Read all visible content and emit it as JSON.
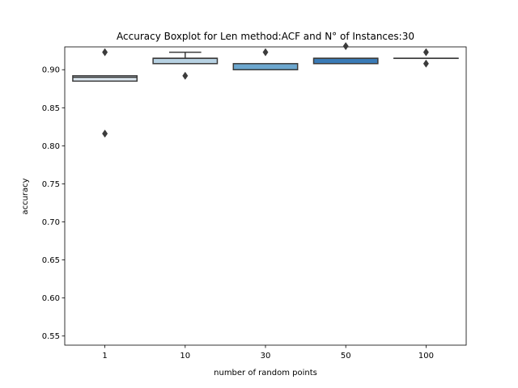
{
  "chart_data": {
    "type": "boxplot",
    "title": "Accuracy Boxplot for Len method:ACF and N° of Instances:30",
    "xlabel": "number of random points",
    "ylabel": "accuracy",
    "ylim": [
      0.538,
      0.93
    ],
    "yticks": [
      "0.55",
      "0.60",
      "0.65",
      "0.70",
      "0.75",
      "0.80",
      "0.85",
      "0.90"
    ],
    "yticks_values": [
      0.55,
      0.6,
      0.65,
      0.7,
      0.75,
      0.8,
      0.85,
      0.9
    ],
    "categories": [
      "1",
      "10",
      "30",
      "50",
      "100"
    ],
    "boxes": [
      {
        "q1": 0.885,
        "median": 0.89,
        "q3": 0.892,
        "whisker_low": 0.885,
        "whisker_high": 0.892,
        "fliers": [
          0.923,
          0.816
        ],
        "color": "#dde8f0"
      },
      {
        "q1": 0.908,
        "median": 0.915,
        "q3": 0.915,
        "whisker_low": 0.908,
        "whisker_high": 0.923,
        "fliers": [
          0.892
        ],
        "color": "#b8d2e3"
      },
      {
        "q1": 0.9,
        "median": 0.908,
        "q3": 0.908,
        "whisker_low": 0.9,
        "whisker_high": 0.908,
        "fliers": [
          0.923
        ],
        "color": "#6ca7cf"
      },
      {
        "q1": 0.908,
        "median": 0.915,
        "q3": 0.915,
        "whisker_low": 0.908,
        "whisker_high": 0.915,
        "fliers": [
          0.931
        ],
        "color": "#3a7bb7"
      },
      {
        "q1": 0.915,
        "median": 0.915,
        "q3": 0.915,
        "whisker_low": 0.915,
        "whisker_high": 0.915,
        "fliers": [
          0.923,
          0.908
        ],
        "color": "#2a5d93"
      }
    ],
    "grid": false
  }
}
